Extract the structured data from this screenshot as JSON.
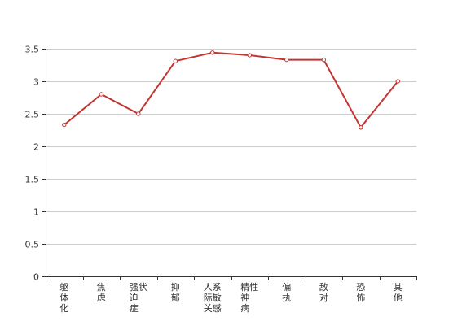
{
  "chart_data": {
    "type": "line",
    "categories": [
      "躯体化",
      "焦虑",
      "强迫症状",
      "抑郁",
      "人际关系敏感",
      "精神病性",
      "偏执",
      "敌对",
      "恐怖",
      "其他"
    ],
    "series": [
      {
        "values": [
          2.33,
          2.8,
          2.5,
          3.31,
          3.44,
          3.4,
          3.33,
          3.33,
          2.29,
          3.0
        ]
      }
    ],
    "title": "",
    "xlabel": "",
    "ylabel": "",
    "ylim": [
      0,
      3.5
    ],
    "yticks": [
      0,
      0.5,
      1,
      1.5,
      2,
      2.5,
      3,
      3.5
    ],
    "ytick_labels": [
      "0",
      "0.5",
      "1",
      "1.5",
      "2",
      "2.5",
      "3",
      "3.5"
    ],
    "grid": "horizontal",
    "colors": {
      "line": "#c23531",
      "grid": "#cccccc",
      "axis": "#333333"
    }
  }
}
